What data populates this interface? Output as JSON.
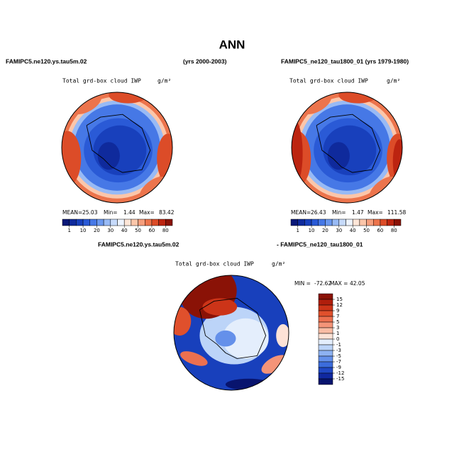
{
  "title": "ANN",
  "panels": [
    {
      "case": "FAMIPC5.ne120.ys.tau5m.02",
      "years": "(yrs 2000-2003)",
      "subtitle": "Total grd-box cloud IWP",
      "units": "g/m²",
      "stats": [
        {
          "label": "MEAN=",
          "value": 25.03
        },
        {
          "label": "Min=",
          "value": 1.44
        },
        {
          "label": "Max=",
          "value": 83.42
        }
      ]
    },
    {
      "case": "FAMIPC5_ne120_tau1800_01 (yrs 1979-1980)",
      "subtitle": "Total grd-box cloud IWP",
      "units": "g/m²",
      "stats": [
        {
          "label": "MEAN=",
          "value": 26.43
        },
        {
          "label": "Min=",
          "value": 1.47
        },
        {
          "label": "Max=",
          "value": 111.58
        }
      ]
    }
  ],
  "colorbar": {
    "levels": [
      1,
      10,
      20,
      30,
      40,
      50,
      60,
      80
    ],
    "colors": [
      "#0a1878",
      "#0f2a9c",
      "#1840bc",
      "#2a5ad6",
      "#4678e6",
      "#6a98ef",
      "#98baf5",
      "#c6dafa",
      "#eef4ff",
      "#fde6d8",
      "#fbc6aa",
      "#f59e7c",
      "#ec744c",
      "#dc4c28",
      "#bc2410",
      "#8a1206"
    ]
  },
  "difference": {
    "case_a": "FAMIPC5.ne120.ys.tau5m.02",
    "case_b": "- FAMIPC5_ne120_tau1800_01",
    "subtitle": "Total grd-box cloud IWP",
    "units": "g/m²",
    "stats": [
      {
        "label": "MIN =",
        "value": -72.62
      },
      {
        "label": "MAX =",
        "value": 42.05
      }
    ],
    "colorbar": {
      "levels": [
        15,
        12,
        9,
        7,
        5,
        3,
        1,
        0,
        -1,
        -3,
        -5,
        -7,
        -9,
        -12,
        -15
      ],
      "colors": [
        "#8a1206",
        "#b01e0c",
        "#cc3418",
        "#e0502c",
        "#ec7050",
        "#f49478",
        "#f9bca4",
        "#fde2d6",
        "#e4eefc",
        "#bcd4f8",
        "#8eb2f2",
        "#6490ea",
        "#3c6cdc",
        "#2048c4",
        "#1028a0",
        "#08146e"
      ]
    }
  }
}
